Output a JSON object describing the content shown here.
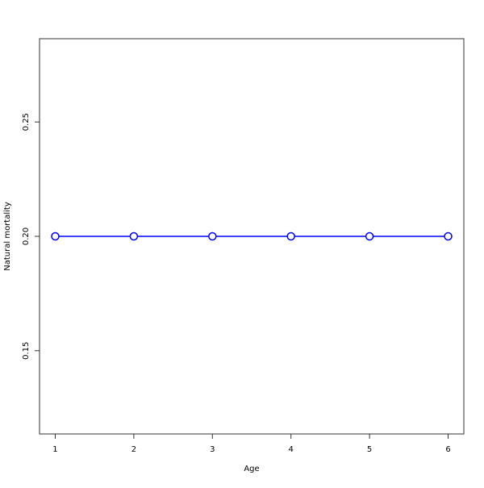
{
  "chart_data": {
    "type": "line",
    "title": "",
    "xlabel": "Age",
    "ylabel": "Natural mortality",
    "x": [
      1,
      2,
      3,
      4,
      5,
      6
    ],
    "series": [
      {
        "values": [
          0.2,
          0.2,
          0.2,
          0.2,
          0.2,
          0.2
        ],
        "color": "#0000ff",
        "marker": "open-circle"
      }
    ],
    "xlim": [
      0.8,
      6.2
    ],
    "ylim": [
      0.1136,
      0.2864
    ],
    "xticks": [
      1,
      2,
      3,
      4,
      5,
      6
    ],
    "xtick_labels": [
      "1",
      "2",
      "3",
      "4",
      "5",
      "6"
    ],
    "yticks": [
      0.15,
      0.2,
      0.25
    ],
    "ytick_labels": [
      "0.15",
      "0.20",
      "0.25"
    ],
    "grid": false,
    "legend": "none"
  }
}
